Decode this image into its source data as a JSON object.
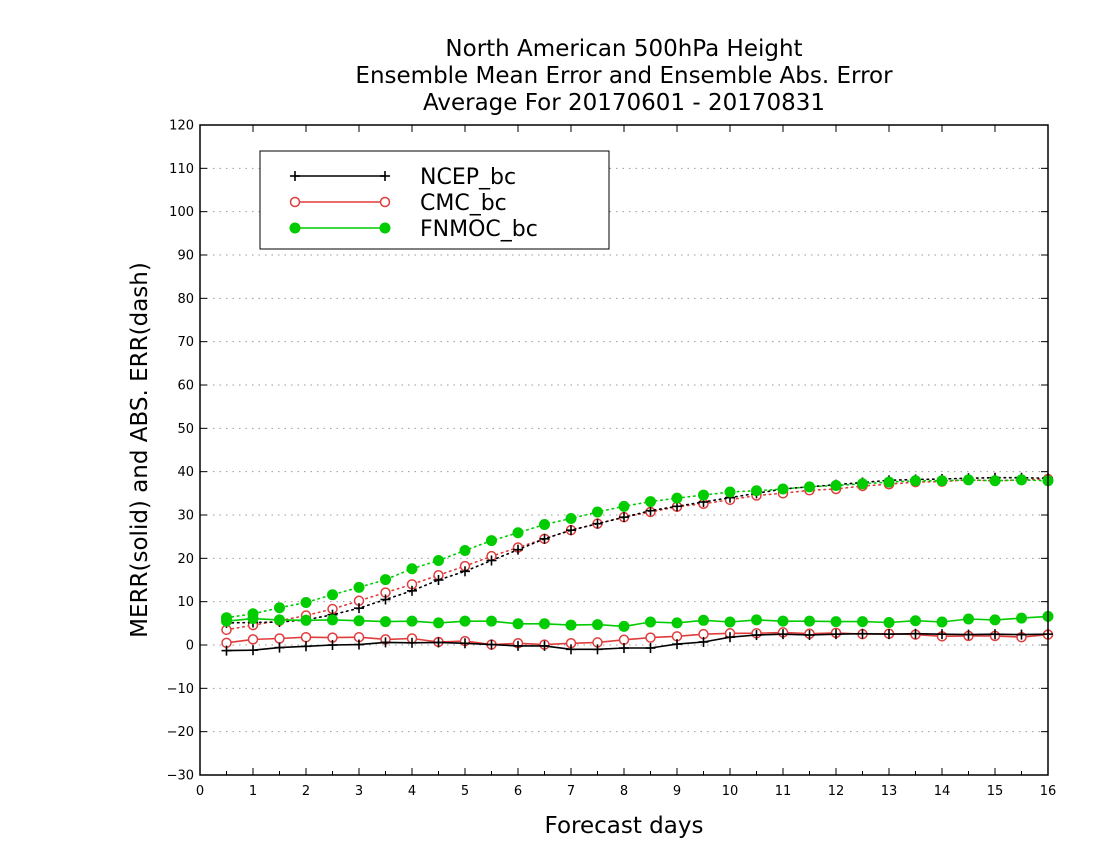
{
  "chart_data": {
    "type": "line",
    "title_lines": [
      "North American 500hPa Height",
      "Ensemble Mean Error and Ensemble Abs. Error",
      "Average For 20170601 - 20170831"
    ],
    "xlabel": "Forecast days",
    "ylabel": "MERR(solid) and ABS. ERR(dash)",
    "xlim": [
      0,
      16
    ],
    "ylim": [
      -30,
      120
    ],
    "x_ticks": [
      0,
      1,
      2,
      3,
      4,
      5,
      6,
      7,
      8,
      9,
      10,
      11,
      12,
      13,
      14,
      15,
      16
    ],
    "y_ticks": [
      -30,
      -20,
      -10,
      0,
      10,
      20,
      30,
      40,
      50,
      60,
      70,
      80,
      90,
      100,
      110,
      120
    ],
    "grid": true,
    "legend_position": "top-left",
    "x": [
      0.5,
      1,
      1.5,
      2,
      2.5,
      3,
      3.5,
      4,
      4.5,
      5,
      5.5,
      6,
      6.5,
      7,
      7.5,
      8,
      8.5,
      9,
      9.5,
      10,
      10.5,
      11,
      11.5,
      12,
      12.5,
      13,
      13.5,
      14,
      14.5,
      15,
      15.5,
      16
    ],
    "series": [
      {
        "name": "NCEP_bc",
        "color": "#000000",
        "marker": "plus",
        "merr": [
          -1.3,
          -1.2,
          -0.6,
          -0.3,
          0,
          0.1,
          0.6,
          0.5,
          0.6,
          0.4,
          0.1,
          -0.2,
          -0.2,
          -1,
          -1,
          -0.7,
          -0.7,
          0.2,
          0.7,
          1.8,
          2.3,
          2.5,
          2.3,
          2.5,
          2.6,
          2.5,
          2.6,
          2.5,
          2.4,
          2.5,
          2.4,
          2.5
        ],
        "abs_err": [
          5.1,
          5.2,
          5.3,
          5.8,
          7,
          8.5,
          10.5,
          12.5,
          15,
          17,
          19.5,
          22,
          24.5,
          26.5,
          28,
          29.5,
          31,
          32,
          33,
          34,
          35,
          36,
          36.5,
          37,
          37.5,
          38,
          38.2,
          38.3,
          38.5,
          38.6,
          38.6,
          38.5
        ]
      },
      {
        "name": "CMC_bc",
        "color": "#e03c3c",
        "marker": "open-circle",
        "merr": [
          0.5,
          1.3,
          1.5,
          1.8,
          1.7,
          1.8,
          1.3,
          1.5,
          0.7,
          0.9,
          0.1,
          0.4,
          0.1,
          0.4,
          0.6,
          1.2,
          1.7,
          2,
          2.5,
          2.7,
          2.7,
          2.9,
          2.6,
          2.8,
          2.5,
          2.6,
          2.4,
          2,
          2.1,
          2.1,
          1.8,
          2.4
        ],
        "abs_err": [
          3.5,
          4.6,
          5.6,
          6.8,
          8.3,
          10.2,
          12.1,
          14,
          16.1,
          18.2,
          20.5,
          22.5,
          24.5,
          26.5,
          28,
          29.5,
          30.7,
          31.9,
          32.6,
          33.5,
          34.5,
          35,
          35.7,
          36,
          36.7,
          37.1,
          37.6,
          37.7,
          38.1,
          37.9,
          38.1,
          38.3
        ]
      },
      {
        "name": "FNMOC_bc",
        "color": "#00cc00",
        "marker": "filled-circle",
        "merr": [
          5.5,
          6.1,
          5.8,
          5.7,
          5.8,
          5.6,
          5.4,
          5.5,
          5.1,
          5.5,
          5.5,
          4.9,
          4.9,
          4.6,
          4.7,
          4.3,
          5.3,
          5.1,
          5.7,
          5.3,
          5.8,
          5.5,
          5.5,
          5.4,
          5.4,
          5.2,
          5.6,
          5.3,
          6,
          5.8,
          6.2,
          6.6
        ],
        "abs_err": [
          6.3,
          7.2,
          8.6,
          9.8,
          11.6,
          13.3,
          15.1,
          17.6,
          19.5,
          21.8,
          24.1,
          25.9,
          27.8,
          29.2,
          30.7,
          32,
          33.1,
          33.9,
          34.6,
          35.3,
          35.6,
          36,
          36.5,
          36.8,
          37.2,
          37.6,
          37.9,
          37.9,
          38.1,
          37.9,
          38.1,
          37.9
        ]
      }
    ]
  }
}
